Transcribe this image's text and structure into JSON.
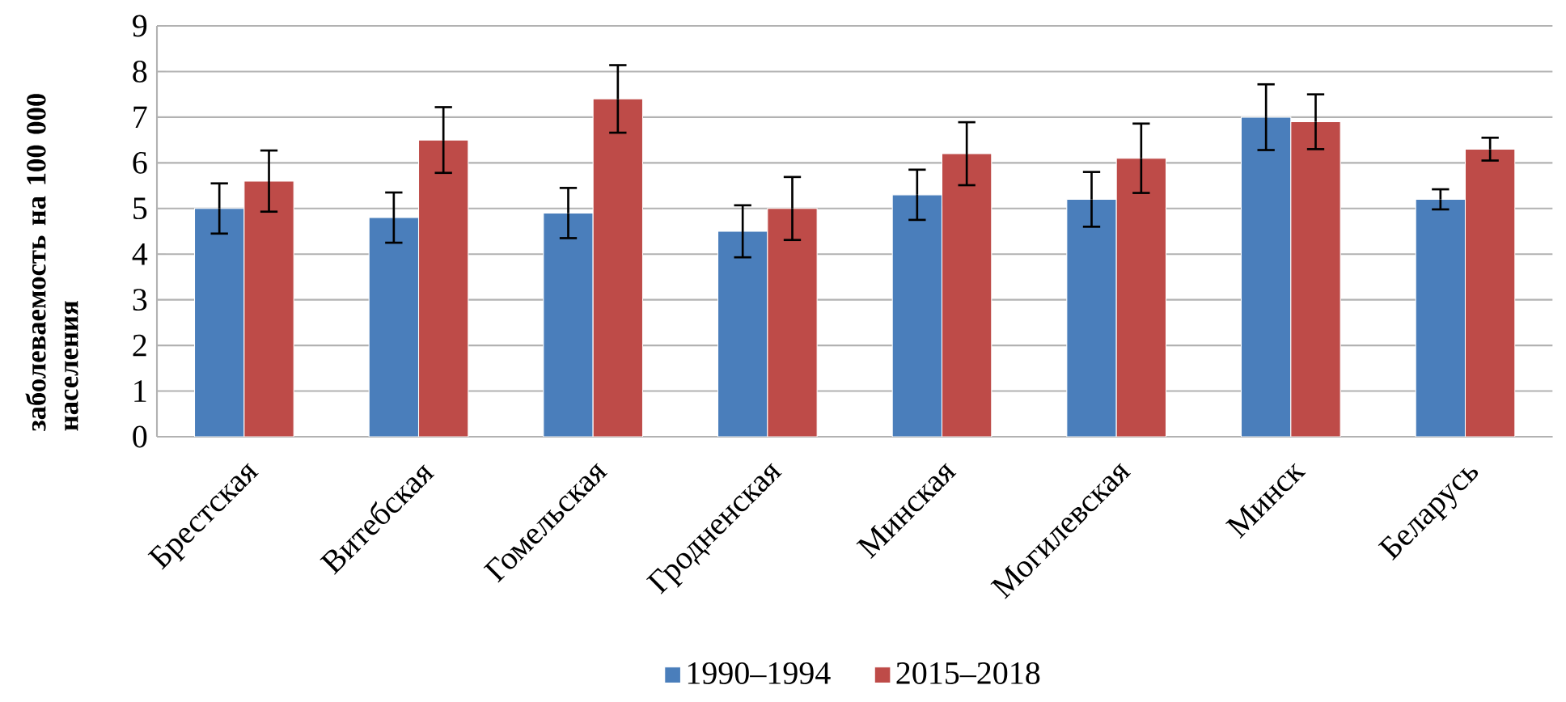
{
  "chart_data": {
    "type": "bar",
    "ylabel": "заболеваемость на 100 000 населения",
    "categories": [
      "Брестская",
      "Витебская",
      "Гомельская",
      "Гродненская",
      "Минская",
      "Могилевская",
      "Минск",
      "Беларусь"
    ],
    "series": [
      {
        "name": "1990–1994",
        "color": "#4a7ebb",
        "values": [
          5.0,
          4.8,
          4.9,
          4.5,
          5.3,
          5.2,
          7.0,
          5.2
        ],
        "errors": [
          0.55,
          0.55,
          0.55,
          0.57,
          0.55,
          0.6,
          0.72,
          0.22
        ]
      },
      {
        "name": "2015–2018",
        "color": "#be4b48",
        "values": [
          5.6,
          6.5,
          7.4,
          5.0,
          6.2,
          6.1,
          6.9,
          6.3
        ],
        "errors": [
          0.67,
          0.72,
          0.74,
          0.69,
          0.69,
          0.76,
          0.6,
          0.25
        ]
      }
    ],
    "ylim": [
      0,
      9
    ],
    "yticks": [
      0,
      1,
      2,
      3,
      4,
      5,
      6,
      7,
      8,
      9
    ],
    "grid": "y",
    "legend": "bottom"
  }
}
